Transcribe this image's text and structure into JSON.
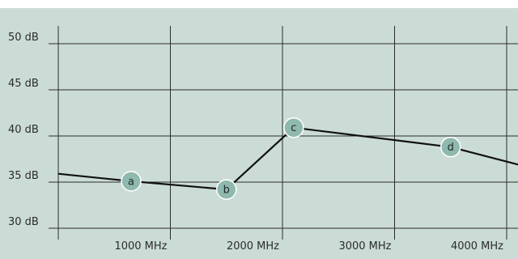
{
  "chart_data": {
    "type": "line",
    "title": "",
    "xlabel": "",
    "ylabel": "",
    "x_unit": "MHz",
    "y_unit": "dB",
    "xlim": [
      0,
      4200
    ],
    "ylim": [
      28.5,
      51
    ],
    "x_ticks": [
      {
        "value": 1000,
        "label": "1000 MHz"
      },
      {
        "value": 2000,
        "label": "2000 MHz"
      },
      {
        "value": 3000,
        "label": "3000 MHz"
      },
      {
        "value": 4000,
        "label": "4000 MHz"
      }
    ],
    "y_ticks": [
      {
        "value": 30,
        "label": "30 dB"
      },
      {
        "value": 35,
        "label": "35 dB"
      },
      {
        "value": 40,
        "label": "40 dB"
      },
      {
        "value": 45,
        "label": "45 dB"
      },
      {
        "value": 50,
        "label": "50 dB"
      }
    ],
    "grid": true,
    "series": [
      {
        "points": [
          {
            "x": 0,
            "y": 35.9
          },
          {
            "x": 650,
            "y": 35.1
          },
          {
            "x": 1500,
            "y": 34.2
          },
          {
            "x": 2100,
            "y": 40.9
          },
          {
            "x": 3500,
            "y": 38.8
          },
          {
            "x": 4200,
            "y": 36.6
          }
        ]
      }
    ],
    "markers": [
      {
        "label": "a",
        "x": 650,
        "y": 35.1
      },
      {
        "label": "b",
        "x": 1500,
        "y": 34.2
      },
      {
        "label": "c",
        "x": 2100,
        "y": 40.9
      },
      {
        "label": "d",
        "x": 3500,
        "y": 38.8
      }
    ]
  },
  "colors": {
    "background": "#ffffff",
    "plot_background": "#cbdcd6",
    "grid": "#2b2b2b",
    "line": "#111111",
    "marker_fill": "#8fb8ae",
    "marker_stroke": "#ffffff",
    "text": "#2b2b2b"
  }
}
